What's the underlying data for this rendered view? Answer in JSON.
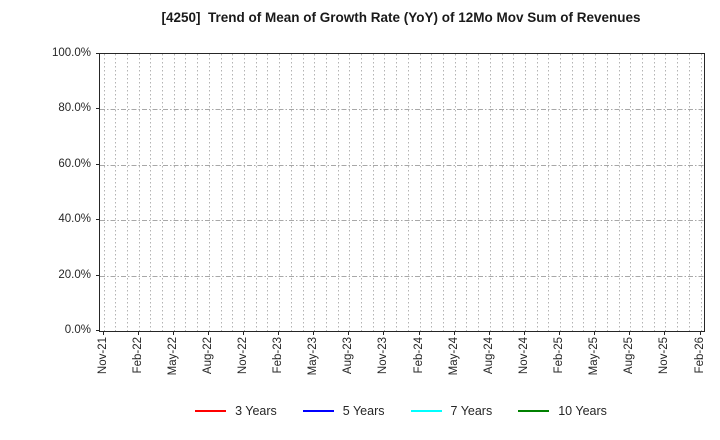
{
  "chart_data": {
    "type": "line",
    "title": "[4250]  Trend of Mean of Growth Rate (YoY) of 12Mo Mov Sum of Revenues",
    "x_tick_labels": [
      "Nov-21",
      "Feb-22",
      "May-22",
      "Aug-22",
      "Nov-22",
      "Feb-23",
      "May-23",
      "Aug-23",
      "Nov-23",
      "Feb-24",
      "May-24",
      "Aug-24",
      "Nov-24",
      "Feb-25",
      "May-25",
      "Aug-25",
      "Nov-25",
      "Feb-26"
    ],
    "x_gridline_count": 52,
    "x_labeled_every_n_gridlines": 3,
    "y_tick_labels": [
      "100.0%",
      "80.0%",
      "60.0%",
      "40.0%",
      "20.0%",
      "0.0%"
    ],
    "ylim": [
      0,
      100
    ],
    "grid": true,
    "legend_position": "bottom",
    "series": [
      {
        "name": "3 Years",
        "color": "#ff0000",
        "values": []
      },
      {
        "name": "5 Years",
        "color": "#0000ff",
        "values": []
      },
      {
        "name": "7 Years",
        "color": "#00ffff",
        "values": []
      },
      {
        "name": "10 Years",
        "color": "#008000",
        "values": []
      }
    ]
  }
}
